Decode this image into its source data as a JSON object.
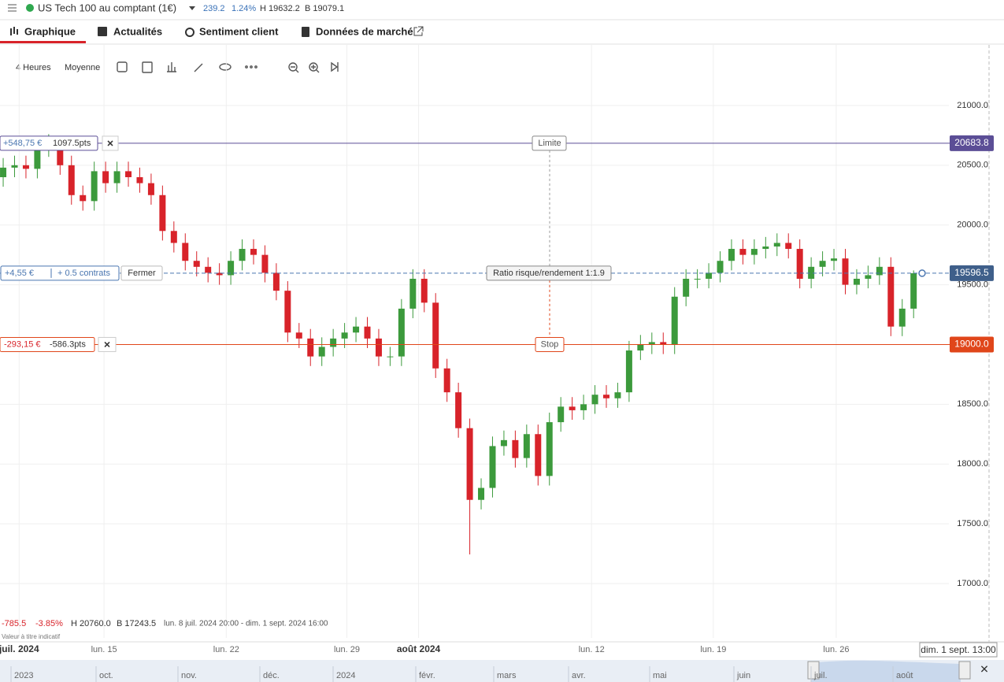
{
  "header": {
    "title": "US Tech 100 au comptant (1€)",
    "change": "239.2",
    "change_pct": "1.24%",
    "high": "H 19632.2",
    "low": "B 19079.1"
  },
  "tabs": [
    "Graphique",
    "Actualités",
    "Sentiment client",
    "Données de marché"
  ],
  "toolbar": {
    "interval": "4 Heures",
    "style": "Moyenne"
  },
  "chart_data": {
    "type": "candlestick",
    "open": [
      20400,
      20480,
      20500,
      20470,
      20650,
      20700,
      20500,
      20250,
      20200,
      20450,
      20350,
      20450,
      20400,
      20350,
      20250,
      19950,
      19850,
      19700,
      19650,
      19600,
      19580,
      19700,
      19800,
      19750,
      19600,
      19450,
      19100,
      19050,
      18900,
      18980,
      19050,
      19100,
      19150,
      19050,
      18900,
      18900,
      19300,
      19550,
      19350,
      18800,
      18600,
      18300,
      17700,
      17800,
      18150,
      18200,
      18050,
      18250,
      17900,
      18350,
      18480,
      18450,
      18500,
      18580,
      18550,
      18600,
      18950,
      19000,
      19020,
      19000,
      19400,
      19550,
      19550,
      19600,
      19700,
      19800,
      19750,
      19800,
      19820,
      19850,
      19800,
      19550,
      19650,
      19700,
      19720,
      19500,
      19550,
      19580,
      19650,
      19150,
      19300
    ],
    "high": [
      20560,
      20580,
      20580,
      20730,
      20760,
      20740,
      20580,
      20330,
      20530,
      20530,
      20530,
      20530,
      20480,
      20430,
      20330,
      20030,
      19930,
      19780,
      19730,
      19680,
      19780,
      19880,
      19880,
      19830,
      19680,
      19530,
      19180,
      19130,
      19060,
      19130,
      19180,
      19230,
      19230,
      19130,
      18980,
      19380,
      19630,
      19630,
      19430,
      18880,
      18680,
      18380,
      17880,
      18230,
      18280,
      18280,
      18330,
      18330,
      18430,
      18560,
      18560,
      18580,
      18660,
      18660,
      18680,
      19030,
      19080,
      19100,
      19100,
      19480,
      19630,
      19630,
      19680,
      19780,
      19880,
      19880,
      19880,
      19900,
      19930,
      19930,
      19880,
      19730,
      19780,
      19800,
      19800,
      19630,
      19660,
      19730,
      19730,
      19380,
      19620
    ],
    "low": [
      20320,
      20400,
      20390,
      20390,
      20570,
      20420,
      20170,
      20120,
      20120,
      20270,
      20270,
      20320,
      20270,
      20170,
      19870,
      19770,
      19620,
      19570,
      19520,
      19500,
      19500,
      19620,
      19670,
      19520,
      19370,
      19020,
      18970,
      18820,
      18820,
      18900,
      18970,
      19020,
      18970,
      18820,
      18820,
      18820,
      19220,
      19270,
      18720,
      18520,
      18220,
      17243.5,
      17620,
      17720,
      18070,
      17970,
      17970,
      17820,
      17820,
      18270,
      18370,
      18370,
      18420,
      18470,
      18470,
      18520,
      18870,
      18920,
      18920,
      18920,
      19320,
      19470,
      19470,
      19520,
      19620,
      19670,
      19670,
      19720,
      19740,
      19720,
      19470,
      19470,
      19570,
      19620,
      19420,
      19420,
      19470,
      19500,
      19070,
      19070,
      19220
    ],
    "close": [
      20480,
      20500,
      20470,
      20650,
      20700,
      20500,
      20250,
      20200,
      20450,
      20350,
      20450,
      20400,
      20350,
      20250,
      19950,
      19850,
      19700,
      19650,
      19600,
      19580,
      19700,
      19800,
      19750,
      19600,
      19450,
      19100,
      19050,
      18900,
      18980,
      19050,
      19100,
      19150,
      19050,
      18900,
      18900,
      19300,
      19550,
      19350,
      18800,
      18600,
      18300,
      17700,
      17800,
      18150,
      18200,
      18050,
      18250,
      17900,
      18350,
      18480,
      18450,
      18500,
      18580,
      18550,
      18600,
      18950,
      19000,
      19020,
      19000,
      19400,
      19550,
      19550,
      19600,
      19700,
      19800,
      19750,
      19800,
      19820,
      19850,
      19800,
      19550,
      19650,
      19700,
      19720,
      19500,
      19550,
      19580,
      19650,
      19150,
      19300,
      19596.5
    ],
    "up_color": "#3c9a3c",
    "down_color": "#d8232a",
    "ylim": [
      16545,
      21507
    ],
    "yticks": [
      {
        "value": 17000,
        "label": "17000.0"
      },
      {
        "value": 17500,
        "label": "17500.0"
      },
      {
        "value": 18000,
        "label": "18000.0"
      },
      {
        "value": 18500,
        "label": "18500.0"
      },
      {
        "value": 19000,
        "label": "19000.0"
      },
      {
        "value": 19500,
        "label": "19500.0"
      },
      {
        "value": 20000,
        "label": "20000.0"
      },
      {
        "value": 20500,
        "label": "20500.0"
      },
      {
        "value": 21000,
        "label": "21000.0"
      }
    ],
    "xlim": [
      -0.28,
      83.1
    ],
    "xticks": [
      {
        "value": 1.4,
        "label": "juil. 2024"
      },
      {
        "value": 8.86,
        "label": "lun. 15"
      },
      {
        "value": 19.6,
        "label": "lun. 22"
      },
      {
        "value": 30.2,
        "label": "lun. 29"
      },
      {
        "value": 36.5,
        "label": "août 2024"
      },
      {
        "value": 51.7,
        "label": "lun. 12"
      },
      {
        "value": 62.4,
        "label": "lun. 19"
      },
      {
        "value": 73.2,
        "label": "lun. 26"
      }
    ],
    "grid": true,
    "limit": {
      "label": "Limite",
      "price": 20683.8,
      "pnl": "+548,75 €",
      "pts": "1097.5pts",
      "color": "#5b4e96"
    },
    "position": {
      "price": 19596.5,
      "pnl": "+4,55 €",
      "size": "+ 0.5 contrats",
      "button": "Fermer",
      "ratio": "Ratio risque/rendement 1:1.9",
      "color": "#4a76b0"
    },
    "stop": {
      "label": "Stop",
      "price": {
        "value": 19000,
        "label": "19000.0"
      },
      "pnl": "-293,15 €",
      "pts": "-586.3pts",
      "color": "#e0461a"
    }
  },
  "stats": {
    "change": "-785.5",
    "change_pct": "-3.85%",
    "high": "H 20760.0",
    "low": "B 17243.5",
    "range": "lun. 8 juil. 2024 20:00 - dim. 1 sept. 2024 16:00",
    "note": "Valeur à titre indicatif",
    "cursor": "dim. 1 sept. 13:00"
  },
  "navigator": [
    "2023",
    "oct.",
    "nov.",
    "déc.",
    "2024",
    "févr.",
    "mars",
    "avr.",
    "mai",
    "juin",
    "juil.",
    "août"
  ]
}
